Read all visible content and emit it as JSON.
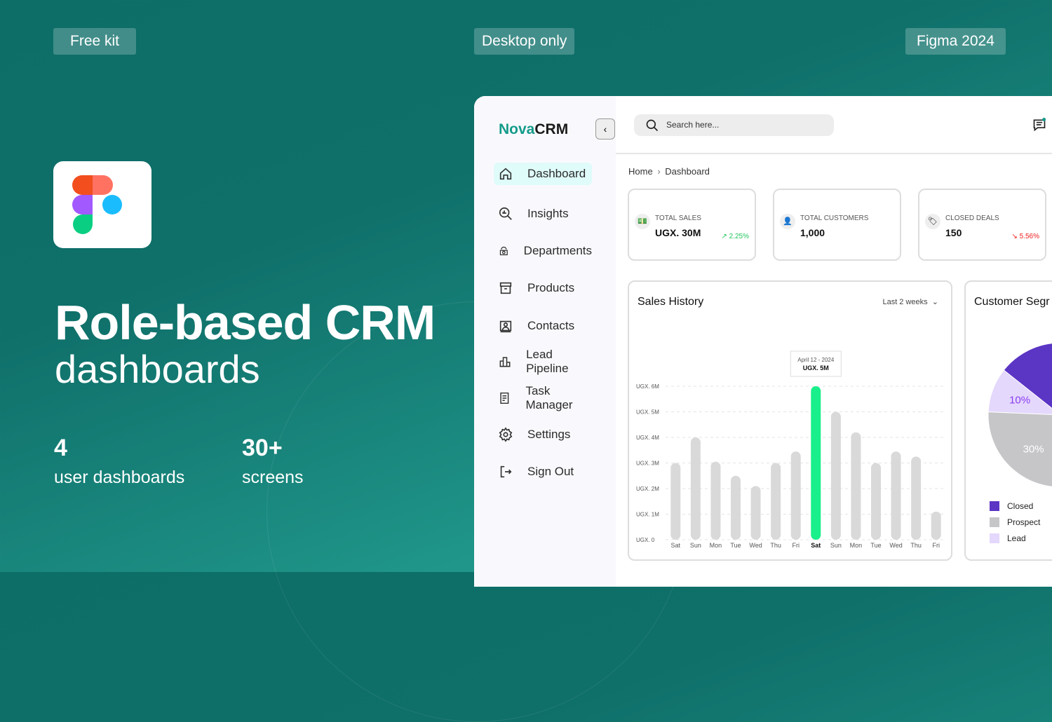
{
  "badges": {
    "left": "Free kit",
    "center": "Desktop only",
    "right": "Figma 2024"
  },
  "hero": {
    "title": "Role-based CRM",
    "subtitle": "dashboards",
    "stats": [
      {
        "number": "4",
        "label": "user dashboards"
      },
      {
        "number": "30+",
        "label": "screens"
      }
    ]
  },
  "app": {
    "logo_a": "Nova",
    "logo_b": "CRM",
    "search_placeholder": "Search here...",
    "breadcrumb": {
      "home": "Home",
      "sep": "›",
      "current": "Dashboard"
    },
    "nav": [
      "Dashboard",
      "Insights",
      "Departments",
      "Products",
      "Contacts",
      "Lead Pipeline",
      "Task Manager",
      "Settings",
      "Sign Out"
    ],
    "cards": [
      {
        "title": "TOTAL SALES",
        "value": "UGX. 30M",
        "delta": "2.25%",
        "trend": "up",
        "color": "#22c55e"
      },
      {
        "title": "TOTAL CUSTOMERS",
        "value": "1,000"
      },
      {
        "title": "CLOSED DEALS",
        "value": "150",
        "delta": "5.56%",
        "trend": "down",
        "color": "#ef1c1c"
      }
    ]
  },
  "chart_data": [
    {
      "type": "bar",
      "title": "Sales History",
      "range": "Last 2 weeks",
      "categories": [
        "Sat",
        "Sun",
        "Mon",
        "Tue",
        "Wed",
        "Thu",
        "Fri",
        "Sat",
        "Sun",
        "Mon",
        "Tue",
        "Wed",
        "Thu",
        "Fri"
      ],
      "values": [
        3.0,
        4.0,
        3.05,
        2.5,
        2.1,
        3.0,
        3.45,
        6.0,
        5.0,
        4.2,
        3.0,
        3.45,
        3.25,
        1.1
      ],
      "highlight_index": 7,
      "highlight_color": "#19ef8a",
      "bar_color": "#d9d9d9",
      "yticks": [
        "UGX. 0",
        "UGX. 1M",
        "UGX. 2M",
        "UGX. 3M",
        "UGX. 4M",
        "UGX. 5M",
        "UGX. 6M"
      ],
      "ylim": [
        0,
        6
      ],
      "tooltip": {
        "date": "April 12 - 2024",
        "value": "UGX. 5M"
      }
    },
    {
      "type": "pie",
      "title": "Customer Segmentation",
      "title_visible": "Customer Segr",
      "slices": [
        {
          "label": "Lead",
          "value": 10,
          "text": "10%",
          "color": "#e4d8fc"
        },
        {
          "label": "Prospect",
          "value": 30,
          "text": "30%",
          "color": "#c6c5c8"
        },
        {
          "label": "Closed",
          "value": 60,
          "color": "#5b35c4"
        }
      ],
      "legend": [
        "Closed",
        "Prospect",
        "Lead"
      ]
    }
  ]
}
